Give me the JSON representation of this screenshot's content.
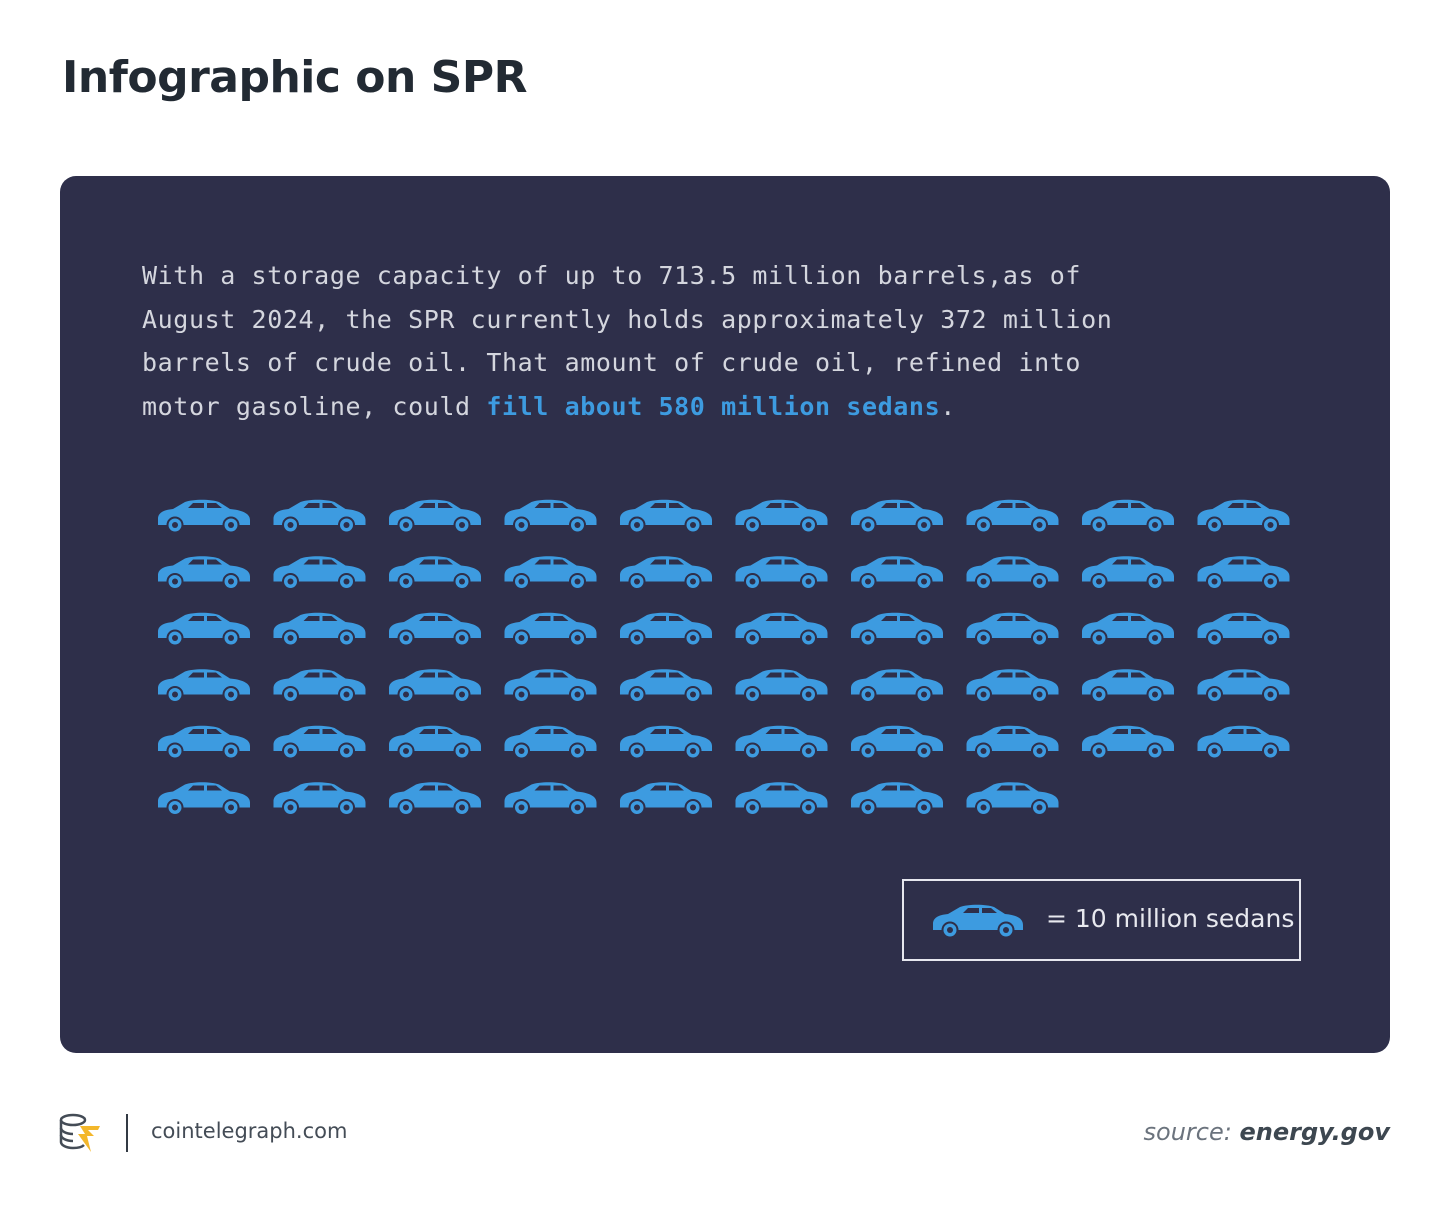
{
  "title": "Infographic on SPR",
  "description": {
    "text_before": "With a storage capacity of up to 713.5 million barrels,as of August 2024, the SPR currently holds approximately 372 million barrels of crude oil. That amount of crude oil, refined into motor gasoline, could ",
    "highlight": "fill about 580 million sedans",
    "text_after": "."
  },
  "legend": {
    "label": "= 10 million sedans",
    "icon": "car-icon"
  },
  "footer": {
    "site": "cointelegraph.com",
    "source_label": "source:",
    "source_value": "energy.gov"
  },
  "colors": {
    "panel": "#2e2f4a",
    "accent": "#3d9be0",
    "car": "#3d9be0"
  },
  "chart_data": {
    "type": "pictogram",
    "unit": "10 million sedans",
    "value": 580,
    "icon_count": 58,
    "icons_per_row": 10
  }
}
